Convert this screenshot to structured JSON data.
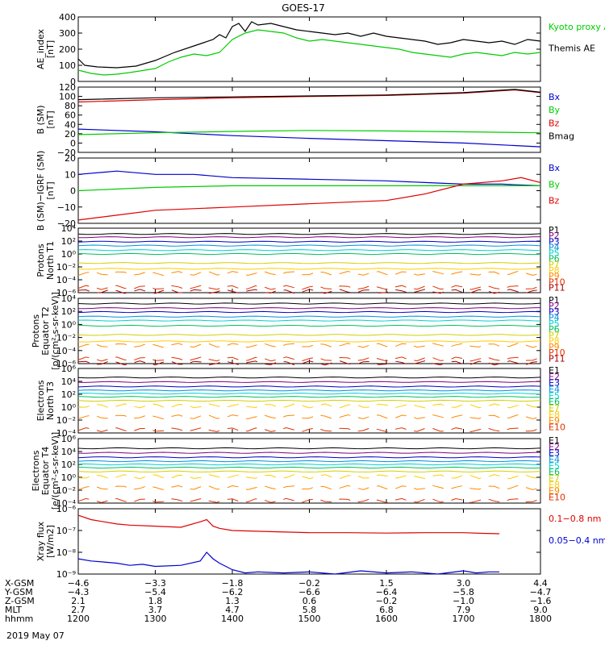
{
  "title": "GOES-17",
  "date": "2019 May 07",
  "colors": {
    "black": "#000000",
    "green": "#00cc00",
    "red": "#dd0000",
    "blue": "#0000cc",
    "P1": "#000000",
    "P2": "#7f007f",
    "P3": "#0000cc",
    "P4": "#008fdf",
    "P5": "#00d0d0",
    "P6": "#00c060",
    "P7": "#d0d000",
    "P8": "#ffcc00",
    "P9": "#ff8800",
    "P10": "#dd3300",
    "P11": "#aa0000"
  },
  "chart_data": [
    {
      "type": "line",
      "id": "ae",
      "ylabel": "AE_index\n[nT]",
      "ylim": [
        0,
        400
      ],
      "yticks": [
        "0",
        "100",
        "200",
        "300",
        "400"
      ],
      "legend": [
        "Kyoto proxy AE",
        "Themis AE"
      ],
      "series": [
        {
          "name": "Themis AE",
          "color": "black",
          "x": [
            1200,
            1205,
            1215,
            1230,
            1245,
            1300,
            1315,
            1330,
            1345,
            1350,
            1355,
            1400,
            1405,
            1410,
            1415,
            1420,
            1430,
            1440,
            1450,
            1500,
            1510,
            1520,
            1530,
            1540,
            1550,
            1600,
            1610,
            1620,
            1630,
            1640,
            1650,
            1700,
            1710,
            1720,
            1730,
            1740,
            1750,
            1800
          ],
          "y": [
            140,
            100,
            90,
            85,
            95,
            130,
            180,
            220,
            260,
            290,
            270,
            340,
            360,
            310,
            370,
            350,
            360,
            340,
            320,
            310,
            300,
            290,
            300,
            280,
            300,
            280,
            270,
            260,
            250,
            230,
            240,
            260,
            250,
            240,
            250,
            230,
            260,
            250
          ]
        },
        {
          "name": "Kyoto proxy AE",
          "color": "green",
          "x": [
            1200,
            1210,
            1220,
            1230,
            1240,
            1300,
            1310,
            1320,
            1330,
            1340,
            1350,
            1400,
            1410,
            1420,
            1430,
            1440,
            1450,
            1500,
            1510,
            1520,
            1530,
            1540,
            1550,
            1600,
            1610,
            1620,
            1630,
            1640,
            1650,
            1700,
            1710,
            1720,
            1730,
            1740,
            1750,
            1800
          ],
          "y": [
            70,
            50,
            40,
            45,
            55,
            80,
            120,
            150,
            170,
            160,
            180,
            260,
            300,
            320,
            310,
            300,
            270,
            250,
            260,
            250,
            240,
            230,
            220,
            210,
            200,
            180,
            170,
            160,
            150,
            170,
            180,
            170,
            160,
            180,
            170,
            180
          ]
        }
      ]
    },
    {
      "type": "line",
      "id": "bsm",
      "ylabel": "B (SM)\n[nT]",
      "ylim": [
        -20,
        120
      ],
      "yticks": [
        "−20",
        "0",
        "20",
        "40",
        "60",
        "80",
        "100",
        "120"
      ],
      "legend": [
        "Bx",
        "By",
        "Bz",
        "Bmag"
      ],
      "series": [
        {
          "name": "Bx",
          "color": "blue",
          "x": [
            1200,
            1300,
            1400,
            1500,
            1600,
            1700,
            1800
          ],
          "y": [
            30,
            24,
            16,
            10,
            5,
            0,
            -8
          ]
        },
        {
          "name": "By",
          "color": "green",
          "x": [
            1200,
            1300,
            1400,
            1500,
            1600,
            1700,
            1800
          ],
          "y": [
            18,
            22,
            25,
            27,
            26,
            24,
            22
          ]
        },
        {
          "name": "Bz",
          "color": "red",
          "x": [
            1200,
            1300,
            1400,
            1500,
            1600,
            1700,
            1740,
            1800
          ],
          "y": [
            88,
            93,
            97,
            100,
            102,
            107,
            114,
            108
          ]
        },
        {
          "name": "Bmag",
          "color": "black",
          "x": [
            1200,
            1300,
            1400,
            1500,
            1600,
            1700,
            1740,
            1800
          ],
          "y": [
            93,
            97,
            99,
            101,
            103,
            108,
            115,
            109
          ]
        }
      ]
    },
    {
      "type": "line",
      "id": "bigrf",
      "ylabel": "B (SM)−IGRF (SM)\n[nT]",
      "ylim": [
        -20,
        20
      ],
      "yticks": [
        "−20",
        "−10",
        "0",
        "10",
        "20"
      ],
      "legend": [
        "Bx",
        "By",
        "Bz"
      ],
      "series": [
        {
          "name": "Bx",
          "color": "blue",
          "x": [
            1200,
            1230,
            1300,
            1330,
            1400,
            1500,
            1600,
            1630,
            1700,
            1730,
            1800
          ],
          "y": [
            10,
            12,
            10,
            10,
            8,
            7,
            6,
            5,
            4,
            4,
            3
          ]
        },
        {
          "name": "By",
          "color": "green",
          "x": [
            1200,
            1300,
            1400,
            1500,
            1600,
            1700,
            1800
          ],
          "y": [
            0,
            2,
            3,
            3,
            3,
            3,
            3
          ]
        },
        {
          "name": "Bz",
          "color": "red",
          "x": [
            1200,
            1230,
            1300,
            1400,
            1500,
            1600,
            1630,
            1700,
            1730,
            1745,
            1800
          ],
          "y": [
            -18,
            -15,
            -12,
            -10,
            -8,
            -6,
            -2,
            4,
            6,
            8,
            5
          ]
        }
      ]
    },
    {
      "type": "line",
      "id": "pn",
      "log": true,
      "ylabel": "Protons\nNorth T1",
      "ylim": [
        -6,
        4
      ],
      "yticks": [
        "10⁻⁶",
        "10⁻⁴",
        "10⁻²",
        "10⁰",
        "10²",
        "10⁴"
      ],
      "legend": [
        "P1",
        "P2",
        "P3",
        "P4",
        "P5",
        "P6",
        "P7",
        "P8",
        "P9",
        "P10",
        "P11"
      ],
      "levels": [
        3.1,
        2.6,
        1.9,
        1.3,
        0.6,
        0.0,
        -1.4,
        -2.3,
        -3.0,
        -5.2,
        -5.8
      ]
    },
    {
      "type": "line",
      "id": "pe",
      "log": true,
      "ylabel": "Protons\nEquator T2\n[p/(cm²-s-sr-keV)]",
      "ylim": [
        -6,
        4
      ],
      "yticks": [
        "10⁻⁶",
        "10⁻⁴",
        "10⁻²",
        "10⁰",
        "10²",
        "10⁴"
      ],
      "legend": [
        "P1",
        "P2",
        "P3",
        "P4",
        "P5",
        "P6",
        "P7",
        "P8",
        "P9",
        "P10",
        "P11"
      ],
      "levels": [
        3.2,
        2.5,
        1.9,
        1.2,
        0.6,
        -0.2,
        -1.6,
        -2.6,
        -3.2,
        -5.3,
        -5.9
      ]
    },
    {
      "type": "line",
      "id": "en",
      "log": true,
      "ylabel": "Electrons\nNorth T3",
      "ylim": [
        -4,
        6
      ],
      "yticks": [
        "10⁻⁴",
        "10⁻²",
        "10⁰",
        "10²",
        "10⁴",
        "10⁶"
      ],
      "legend": [
        "E1",
        "E2",
        "E3",
        "E4",
        "E5",
        "E6",
        "E7",
        "E8",
        "E9",
        "E10"
      ],
      "levels": [
        4.6,
        3.9,
        3.2,
        2.6,
        2.1,
        1.6,
        1.0,
        0.2,
        -1.5,
        -3.5
      ]
    },
    {
      "type": "line",
      "id": "ee",
      "log": true,
      "ylabel": "Electrons\nEquator T4\n[e/(cm²-s-sr-keV)]",
      "ylim": [
        -4,
        6
      ],
      "yticks": [
        "10⁻⁴",
        "10⁻²",
        "10⁰",
        "10²",
        "10⁴",
        "10⁶"
      ],
      "legend": [
        "E1",
        "E2",
        "E3",
        "E4",
        "E5",
        "E6",
        "E7",
        "E8",
        "E9",
        "E10"
      ],
      "levels": [
        4.5,
        3.8,
        3.1,
        2.5,
        2.0,
        1.5,
        0.9,
        0.1,
        -1.6,
        -3.6
      ]
    },
    {
      "type": "line",
      "id": "xray",
      "log": true,
      "ylabel": "Xray flux\n[W/m2]",
      "ylim": [
        -9,
        -6
      ],
      "yticks": [
        "10⁻⁹",
        "10⁻⁸",
        "10⁻⁷",
        "10⁻⁶"
      ],
      "legend": [
        "0.1−0.8 nm",
        "0.05−0.4 nm"
      ],
      "series": [
        {
          "name": "0.1−0.8 nm",
          "color": "red",
          "x": [
            1200,
            1210,
            1220,
            1230,
            1240,
            1300,
            1320,
            1335,
            1340,
            1345,
            1350,
            1400,
            1430,
            1500,
            1530,
            1600,
            1630,
            1700,
            1715,
            1728
          ],
          "y": [
            -6.3,
            -6.5,
            -6.6,
            -6.7,
            -6.75,
            -6.8,
            -6.85,
            -6.6,
            -6.5,
            -6.8,
            -6.9,
            -7.0,
            -7.05,
            -7.1,
            -7.1,
            -7.12,
            -7.1,
            -7.1,
            -7.13,
            -7.15
          ]
        },
        {
          "name": "0.05−0.4 nm",
          "color": "blue",
          "x": [
            1200,
            1210,
            1220,
            1230,
            1240,
            1250,
            1300,
            1320,
            1335,
            1340,
            1345,
            1350,
            1400,
            1410,
            1420,
            1440,
            1500,
            1520,
            1540,
            1600,
            1620,
            1640,
            1700,
            1710,
            1720,
            1728
          ],
          "y": [
            -8.3,
            -8.4,
            -8.45,
            -8.5,
            -8.6,
            -8.55,
            -8.65,
            -8.6,
            -8.4,
            -8.0,
            -8.3,
            -8.5,
            -8.8,
            -8.95,
            -8.9,
            -8.95,
            -8.9,
            -9.0,
            -8.85,
            -8.95,
            -8.9,
            -9.0,
            -8.85,
            -8.95,
            -8.9,
            -8.9
          ]
        }
      ]
    }
  ],
  "xaxis": {
    "ticks": [
      1200,
      1300,
      1400,
      1500,
      1600,
      1700,
      1800
    ],
    "rows": [
      {
        "label": "X-GSM",
        "values": [
          "−4.6",
          "−3.3",
          "−1.8",
          "−0.2",
          "1.5",
          "3.0",
          "4.4"
        ]
      },
      {
        "label": "Y-GSM",
        "values": [
          "−4.3",
          "−5.4",
          "−6.2",
          "−6.6",
          "−6.4",
          "−5.8",
          "−4.7"
        ]
      },
      {
        "label": "Z-GSM",
        "values": [
          "2.1",
          "1.8",
          "1.3",
          "0.6",
          "−0.2",
          "−1.0",
          "−1.6"
        ]
      },
      {
        "label": "MLT",
        "values": [
          "2.7",
          "3.7",
          "4.7",
          "5.8",
          "6.8",
          "7.9",
          "9.0"
        ]
      },
      {
        "label": "hhmm",
        "values": [
          "1200",
          "1300",
          "1400",
          "1500",
          "1600",
          "1700",
          "1800"
        ]
      }
    ]
  }
}
